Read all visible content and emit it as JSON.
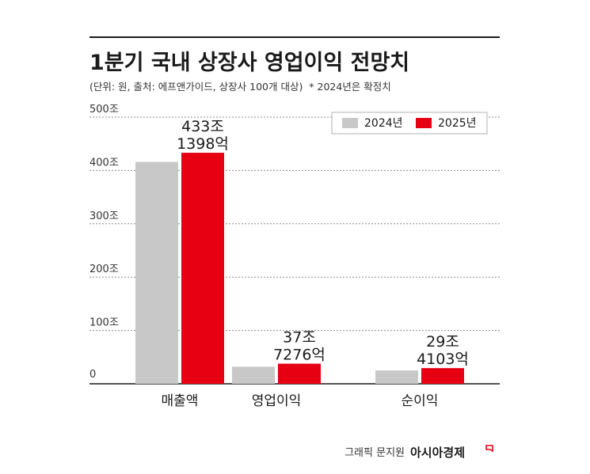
{
  "chart_data": {
    "type": "bar",
    "title": "1분기 국내 상장사 영업이익 전망치",
    "subtitle": "(단위: 원, 출처: 에프앤가이드, 상장사 100개 대상)  * 2024년은 확정치",
    "categories": [
      "매출액",
      "영업이익",
      "순이익"
    ],
    "series": [
      {
        "name": "2024년",
        "color": "#c8c8c8",
        "values": [
          416,
          32,
          25
        ]
      },
      {
        "name": "2025년",
        "color": "#e60012",
        "values": [
          433.1398,
          37.7276,
          29.4103
        ]
      }
    ],
    "data_labels": [
      {
        "category": "매출액",
        "line1": "433조",
        "line2": "1398억"
      },
      {
        "category": "영업이익",
        "line1": "37조",
        "line2": "7276억"
      },
      {
        "category": "순이익",
        "line1": "29조",
        "line2": "4103억"
      }
    ],
    "y_ticks": [
      {
        "value": 0,
        "label": "0"
      },
      {
        "value": 100,
        "label": "100조"
      },
      {
        "value": 200,
        "label": "200조"
      },
      {
        "value": 300,
        "label": "300조"
      },
      {
        "value": 400,
        "label": "400조"
      },
      {
        "value": 500,
        "label": "500조"
      }
    ],
    "ylim": [
      0,
      500
    ],
    "grid": true,
    "legend_position": "top-right",
    "credit_prefix": "그래픽 문지원",
    "credit_brand": "아시아경제"
  }
}
